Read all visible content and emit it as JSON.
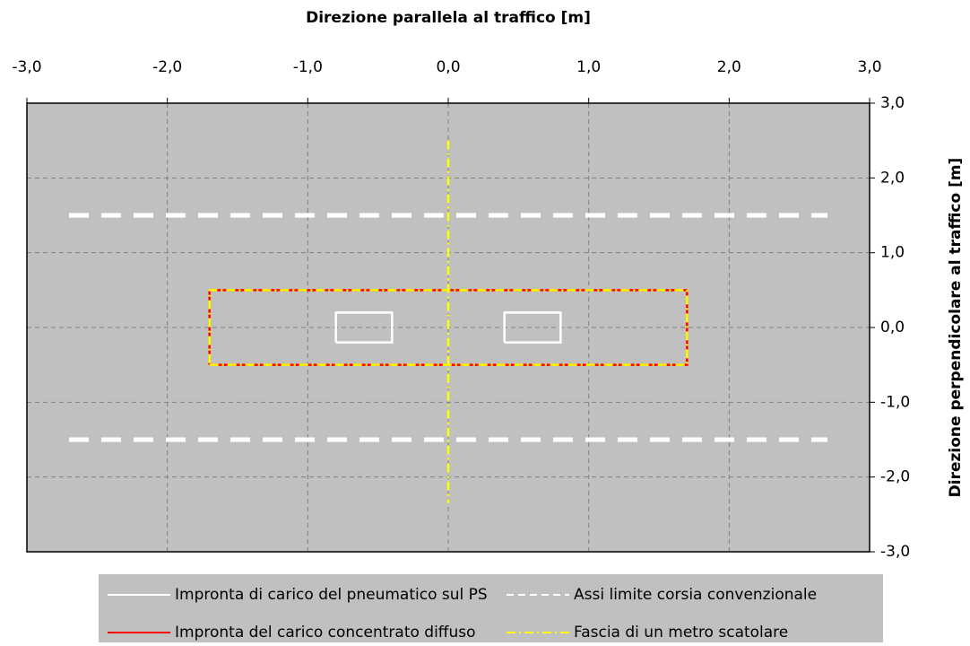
{
  "chart_data": {
    "type": "line",
    "title": "Direzione parallela al traffico [m]",
    "ylabel": "Direzione perpendicolare al traffico [m]",
    "xlim": [
      -3,
      3
    ],
    "ylim": [
      -3,
      3
    ],
    "xticks": [
      {
        "value": -3,
        "label": "-3,0"
      },
      {
        "value": -2,
        "label": "-2,0"
      },
      {
        "value": -1,
        "label": "-1,0"
      },
      {
        "value": 0,
        "label": "0,0"
      },
      {
        "value": 1,
        "label": "1,0"
      },
      {
        "value": 2,
        "label": "2,0"
      },
      {
        "value": 3,
        "label": "3,0"
      }
    ],
    "yticks": [
      {
        "value": -3,
        "label": "-3,0"
      },
      {
        "value": -2,
        "label": "-2,0"
      },
      {
        "value": -1,
        "label": "-1,0"
      },
      {
        "value": 0,
        "label": "0,0"
      },
      {
        "value": 1,
        "label": "1,0"
      },
      {
        "value": 2,
        "label": "2,0"
      },
      {
        "value": 3,
        "label": "3,0"
      }
    ],
    "grid": true,
    "background": "#c0c0c0",
    "series": [
      {
        "name": "Impronta di carico del pneumatico sul PS",
        "color": "#ffffff",
        "dash": "solid",
        "x": [
          -0.8,
          -0.4,
          -0.4,
          -0.8,
          -0.8,
          null,
          0.4,
          0.8,
          0.8,
          0.4,
          0.4
        ],
        "y": [
          -0.2,
          -0.2,
          0.2,
          0.2,
          -0.2,
          null,
          -0.2,
          -0.2,
          0.2,
          0.2,
          -0.2
        ]
      },
      {
        "name": "Assi limite corsia convenzionale",
        "color": "#ffffff",
        "dash": "dashed",
        "x": [
          -2.7,
          2.7,
          null,
          -2.7,
          2.7
        ],
        "y": [
          1.5,
          1.5,
          null,
          -1.5,
          -1.5
        ]
      },
      {
        "name": "Impronta del carico concentrato diffuso",
        "color": "#ff0000",
        "dash": "solid",
        "x": [
          -1.7,
          1.7,
          1.7,
          -1.7,
          -1.7
        ],
        "y": [
          -0.5,
          -0.5,
          0.5,
          0.5,
          -0.5
        ]
      },
      {
        "name": "Fascia di un metro scatolare",
        "color": "#ffff00",
        "dash": "dashdot",
        "x": [
          -1.7,
          1.7,
          1.7,
          -1.7,
          -1.7,
          null,
          0,
          0
        ],
        "y": [
          -0.5,
          -0.5,
          0.5,
          0.5,
          -0.5,
          null,
          2.5,
          -2.35
        ]
      }
    ]
  }
}
